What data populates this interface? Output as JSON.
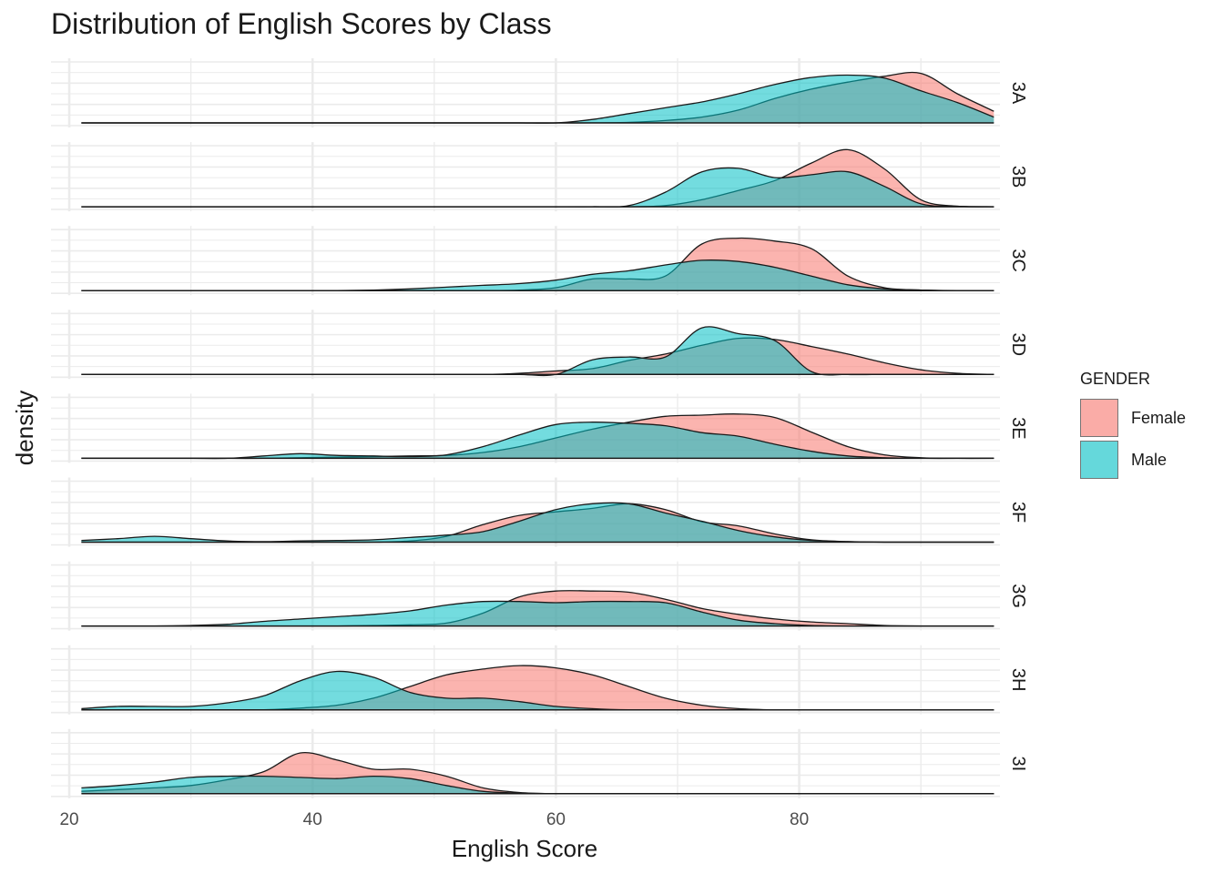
{
  "chart_data": {
    "type": "area",
    "subtype": "faceted density plot",
    "title": "Distribution of English Scores by Class",
    "xlabel": "English Score",
    "ylabel": "density",
    "xlim": [
      18.5,
      96.5
    ],
    "x_ticks": [
      20,
      40,
      60,
      80
    ],
    "grid": true,
    "legend": {
      "title": "GENDER",
      "position": "right"
    },
    "facet_by": "class",
    "colors": {
      "Female": "#F8766D",
      "Male": "#00BFC4",
      "outline": "#1a1a1a",
      "grid": "#ebebeb"
    },
    "x": [
      21,
      24,
      27,
      30,
      33,
      36,
      39,
      42,
      45,
      48,
      51,
      54,
      57,
      60,
      63,
      66,
      69,
      72,
      75,
      78,
      81,
      84,
      87,
      90,
      93,
      96
    ],
    "facets": [
      {
        "label": "3A",
        "series": [
          {
            "name": "Female",
            "values": [
              0,
              0,
              0,
              0,
              0,
              0,
              0,
              0,
              0,
              0,
              0,
              0,
              0,
              0,
              0.002,
              0.01,
              0.04,
              0.1,
              0.22,
              0.42,
              0.58,
              0.7,
              0.8,
              0.85,
              0.5,
              0.2
            ]
          },
          {
            "name": "Male",
            "values": [
              0,
              0,
              0,
              0,
              0,
              0,
              0,
              0,
              0,
              0,
              0,
              0,
              0,
              0,
              0.06,
              0.16,
              0.26,
              0.36,
              0.5,
              0.66,
              0.78,
              0.82,
              0.77,
              0.55,
              0.35,
              0.1
            ]
          }
        ]
      },
      {
        "label": "3B",
        "series": [
          {
            "name": "Female",
            "values": [
              0,
              0,
              0,
              0,
              0,
              0,
              0,
              0,
              0,
              0,
              0,
              0,
              0,
              0,
              0,
              0,
              0.02,
              0.12,
              0.28,
              0.45,
              0.75,
              0.98,
              0.65,
              0.12,
              0.01,
              0
            ]
          },
          {
            "name": "Male",
            "values": [
              0,
              0,
              0,
              0,
              0,
              0,
              0,
              0,
              0,
              0,
              0,
              0,
              0,
              0,
              0,
              0.02,
              0.25,
              0.6,
              0.66,
              0.5,
              0.55,
              0.6,
              0.35,
              0.05,
              0.01,
              0
            ]
          }
        ]
      },
      {
        "label": "3C",
        "series": [
          {
            "name": "Female",
            "values": [
              0,
              0,
              0,
              0,
              0,
              0,
              0,
              0,
              0,
              0,
              0,
              0,
              0.01,
              0.05,
              0.2,
              0.2,
              0.25,
              0.8,
              0.9,
              0.85,
              0.72,
              0.25,
              0.05,
              0.01,
              0,
              0
            ]
          },
          {
            "name": "Male",
            "values": [
              0,
              0,
              0,
              0,
              0,
              0,
              0,
              0,
              0.01,
              0.03,
              0.06,
              0.09,
              0.12,
              0.18,
              0.28,
              0.34,
              0.44,
              0.52,
              0.5,
              0.4,
              0.25,
              0.1,
              0.03,
              0.01,
              0,
              0
            ]
          }
        ]
      },
      {
        "label": "3D",
        "series": [
          {
            "name": "Female",
            "values": [
              0,
              0,
              0,
              0,
              0,
              0,
              0,
              0,
              0,
              0,
              0,
              0,
              0.02,
              0.06,
              0.1,
              0.24,
              0.35,
              0.5,
              0.62,
              0.6,
              0.48,
              0.35,
              0.2,
              0.08,
              0.02,
              0
            ]
          },
          {
            "name": "Male",
            "values": [
              0,
              0,
              0,
              0,
              0,
              0,
              0,
              0,
              0,
              0,
              0,
              0,
              0,
              0,
              0.25,
              0.3,
              0.3,
              0.8,
              0.7,
              0.58,
              0.05,
              0,
              0,
              0,
              0,
              0
            ]
          }
        ]
      },
      {
        "label": "3E",
        "series": [
          {
            "name": "Female",
            "values": [
              0,
              0,
              0,
              0,
              0,
              0,
              0.01,
              0.02,
              0.03,
              0.04,
              0.05,
              0.1,
              0.2,
              0.35,
              0.5,
              0.62,
              0.72,
              0.74,
              0.76,
              0.7,
              0.45,
              0.2,
              0.06,
              0.01,
              0,
              0
            ]
          },
          {
            "name": "Male",
            "values": [
              0,
              0,
              0,
              0,
              0,
              0.04,
              0.08,
              0.05,
              0.04,
              0.03,
              0.06,
              0.2,
              0.4,
              0.58,
              0.62,
              0.6,
              0.56,
              0.44,
              0.38,
              0.24,
              0.12,
              0.04,
              0.01,
              0,
              0,
              0
            ]
          }
        ]
      },
      {
        "label": "3F",
        "series": [
          {
            "name": "Female",
            "values": [
              0,
              0,
              0,
              0,
              0,
              0,
              0,
              0,
              0,
              0.02,
              0.1,
              0.3,
              0.46,
              0.52,
              0.58,
              0.66,
              0.56,
              0.35,
              0.28,
              0.14,
              0.04,
              0.01,
              0,
              0,
              0,
              0
            ]
          },
          {
            "name": "Male",
            "values": [
              0.03,
              0.06,
              0.1,
              0.06,
              0.02,
              0.01,
              0.02,
              0.03,
              0.04,
              0.08,
              0.12,
              0.18,
              0.36,
              0.56,
              0.66,
              0.66,
              0.5,
              0.36,
              0.2,
              0.09,
              0.03,
              0.01,
              0,
              0,
              0,
              0
            ]
          }
        ]
      },
      {
        "label": "3G",
        "series": [
          {
            "name": "Female",
            "values": [
              0,
              0,
              0,
              0,
              0,
              0,
              0,
              0,
              0.01,
              0.02,
              0.05,
              0.22,
              0.5,
              0.6,
              0.6,
              0.58,
              0.46,
              0.3,
              0.2,
              0.12,
              0.07,
              0.04,
              0.01,
              0,
              0,
              0
            ]
          },
          {
            "name": "Male",
            "values": [
              0,
              0,
              0,
              0.01,
              0.03,
              0.08,
              0.12,
              0.16,
              0.2,
              0.26,
              0.36,
              0.42,
              0.42,
              0.4,
              0.42,
              0.42,
              0.4,
              0.24,
              0.1,
              0.04,
              0.01,
              0,
              0,
              0,
              0,
              0
            ]
          }
        ]
      },
      {
        "label": "3H",
        "series": [
          {
            "name": "Female",
            "values": [
              0,
              0,
              0,
              0,
              0,
              0,
              0.03,
              0.08,
              0.2,
              0.4,
              0.6,
              0.7,
              0.76,
              0.72,
              0.6,
              0.4,
              0.2,
              0.08,
              0.02,
              0,
              0,
              0,
              0,
              0,
              0,
              0
            ]
          },
          {
            "name": "Male",
            "values": [
              0.02,
              0.06,
              0.06,
              0.06,
              0.12,
              0.24,
              0.5,
              0.66,
              0.56,
              0.3,
              0.2,
              0.2,
              0.14,
              0.06,
              0.02,
              0,
              0,
              0,
              0,
              0,
              0,
              0,
              0,
              0,
              0,
              0
            ]
          }
        ]
      },
      {
        "label": "3I",
        "series": [
          {
            "name": "Female",
            "values": [
              0.04,
              0.07,
              0.1,
              0.14,
              0.24,
              0.38,
              0.7,
              0.58,
              0.42,
              0.42,
              0.3,
              0.1,
              0.02,
              0,
              0,
              0,
              0,
              0,
              0,
              0,
              0,
              0,
              0,
              0,
              0,
              0
            ]
          },
          {
            "name": "Male",
            "values": [
              0.1,
              0.14,
              0.2,
              0.28,
              0.3,
              0.3,
              0.28,
              0.26,
              0.3,
              0.26,
              0.14,
              0.04,
              0.01,
              0,
              0,
              0,
              0,
              0,
              0,
              0,
              0,
              0,
              0,
              0,
              0,
              0
            ]
          }
        ]
      }
    ]
  }
}
